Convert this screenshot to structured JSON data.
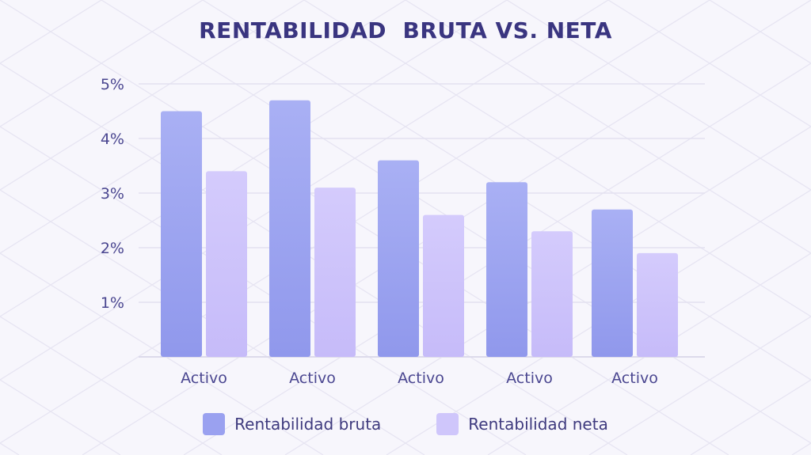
{
  "colors": {
    "series_gross": "#9aa1f0",
    "series_net": "#cfc6fb",
    "title": "#3a3580",
    "axis_text": "#4a4690",
    "grid": "#e3e1f0"
  },
  "chart_data": {
    "type": "bar",
    "title": "RENTABILIDAD  BRUTA VS. NETA",
    "xlabel": "",
    "ylabel": "",
    "categories": [
      "Activo",
      "Activo",
      "Activo",
      "Activo",
      "Activo"
    ],
    "series": [
      {
        "name": "Rentabilidad bruta",
        "values": [
          4.5,
          4.7,
          3.6,
          3.2,
          2.7
        ]
      },
      {
        "name": "Rentabilidad neta",
        "values": [
          3.4,
          3.1,
          2.6,
          2.3,
          1.9
        ]
      }
    ],
    "ylim": [
      0,
      5
    ],
    "yticks": [
      1,
      2,
      3,
      4,
      5
    ],
    "ytick_labels": [
      "1%",
      "2%",
      "3%",
      "4%",
      "5%"
    ],
    "grid": true,
    "legend_position": "bottom"
  }
}
